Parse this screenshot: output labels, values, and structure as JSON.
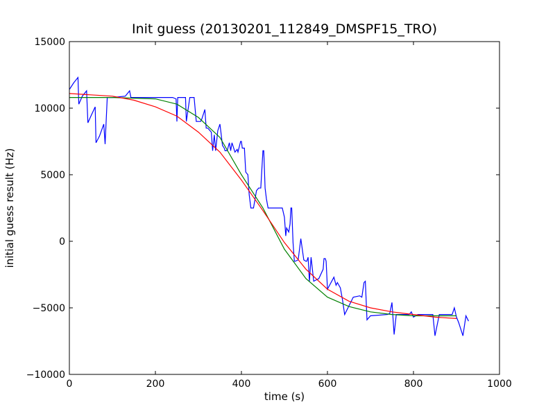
{
  "chart_data": {
    "type": "line",
    "title": "Init guess (20130201_112849_DMSPF15_TRO)",
    "xlabel": "time (s)",
    "ylabel": "initial guess result (Hz)",
    "xlim": [
      0,
      1000
    ],
    "ylim": [
      -10000,
      15000
    ],
    "x_ticks": [
      0,
      200,
      400,
      600,
      800,
      1000
    ],
    "y_ticks": [
      -10000,
      -5000,
      0,
      5000,
      10000,
      15000
    ],
    "x_tick_labels": [
      "0",
      "200",
      "400",
      "600",
      "800",
      "1000"
    ],
    "y_tick_labels": [
      "−10000",
      "−5000",
      "0",
      "5000",
      "10000",
      "15000"
    ],
    "grid": false,
    "legend": "none",
    "series": [
      {
        "color": "#0000ff",
        "x": [
          0,
          10,
          20,
          22,
          30,
          40,
          43,
          50,
          60,
          62,
          70,
          80,
          83,
          88,
          90,
          100,
          130,
          140,
          143,
          150,
          190,
          240,
          248,
          250,
          252,
          260,
          270,
          272,
          280,
          290,
          295,
          305,
          308,
          315,
          318,
          322,
          330,
          333,
          337,
          340,
          345,
          350,
          352,
          356,
          360,
          362,
          367,
          372,
          375,
          378,
          385,
          390,
          392,
          398,
          400,
          402,
          407,
          410,
          415,
          418,
          422,
          428,
          435,
          440,
          445,
          450,
          452,
          455,
          458,
          462,
          470,
          475,
          480,
          490,
          495,
          500,
          503,
          505,
          510,
          513,
          515,
          517,
          520,
          523,
          525,
          532,
          538,
          545,
          550,
          552,
          555,
          558,
          562,
          568,
          580,
          590,
          592,
          595,
          597,
          600,
          615,
          620,
          623,
          630,
          635,
          640,
          660,
          675,
          680,
          685,
          688,
          692,
          700,
          740,
          745,
          750,
          755,
          760,
          770,
          785,
          790,
          795,
          800,
          810,
          840,
          845,
          850,
          860,
          890,
          895,
          900,
          905,
          915,
          922,
          928
        ],
        "y": [
          11400,
          11900,
          12300,
          10300,
          10900,
          11300,
          8900,
          9400,
          10100,
          7400,
          7900,
          8800,
          7300,
          10800,
          10800,
          10800,
          10900,
          11300,
          10800,
          10800,
          10800,
          10800,
          10700,
          9000,
          10800,
          10800,
          10800,
          9000,
          10800,
          10800,
          9000,
          9000,
          9200,
          9900,
          8500,
          8500,
          8200,
          6800,
          8000,
          6800,
          8300,
          8800,
          8300,
          7200,
          7000,
          6800,
          6800,
          7400,
          6800,
          7400,
          6700,
          6900,
          6700,
          7500,
          7500,
          7000,
          7000,
          5200,
          5000,
          3500,
          2500,
          2500,
          3800,
          4000,
          4000,
          6800,
          6800,
          4000,
          3200,
          2500,
          2500,
          2500,
          2500,
          2500,
          2500,
          1800,
          400,
          1000,
          700,
          1300,
          2500,
          2500,
          -100,
          -1500,
          -1500,
          -1400,
          200,
          -1400,
          -1500,
          -1500,
          -1200,
          -3000,
          -1200,
          -3000,
          -2800,
          -2100,
          -1300,
          -1300,
          -1500,
          -3600,
          -2700,
          -3300,
          -3100,
          -3500,
          -4400,
          -5500,
          -4200,
          -4100,
          -4200,
          -3100,
          -3000,
          -5900,
          -5600,
          -5500,
          -5400,
          -4600,
          -7000,
          -5500,
          -5500,
          -5500,
          -5500,
          -5300,
          -5700,
          -5500,
          -5500,
          -5500,
          -7100,
          -5500,
          -5500,
          -5000,
          -5700,
          -6100,
          -7100,
          -5600,
          -6000
        ]
      },
      {
        "color": "#008000",
        "x": [
          0,
          100,
          200,
          250,
          300,
          350,
          400,
          450,
          500,
          550,
          600,
          650,
          700,
          750,
          800,
          850,
          900
        ],
        "y": [
          10800,
          10800,
          10700,
          10300,
          9300,
          7800,
          5000,
          2500,
          -600,
          -2800,
          -4200,
          -4900,
          -5300,
          -5500,
          -5600,
          -5600,
          -5600
        ]
      },
      {
        "color": "#ff0000",
        "x": [
          0,
          50,
          100,
          150,
          200,
          250,
          300,
          350,
          400,
          450,
          500,
          550,
          600,
          650,
          700,
          750,
          800,
          850,
          900
        ],
        "y": [
          11100,
          11000,
          10900,
          10600,
          10100,
          9400,
          8200,
          6700,
          4600,
          2300,
          -100,
          -2100,
          -3600,
          -4500,
          -5000,
          -5300,
          -5500,
          -5700,
          -5800
        ]
      }
    ]
  }
}
